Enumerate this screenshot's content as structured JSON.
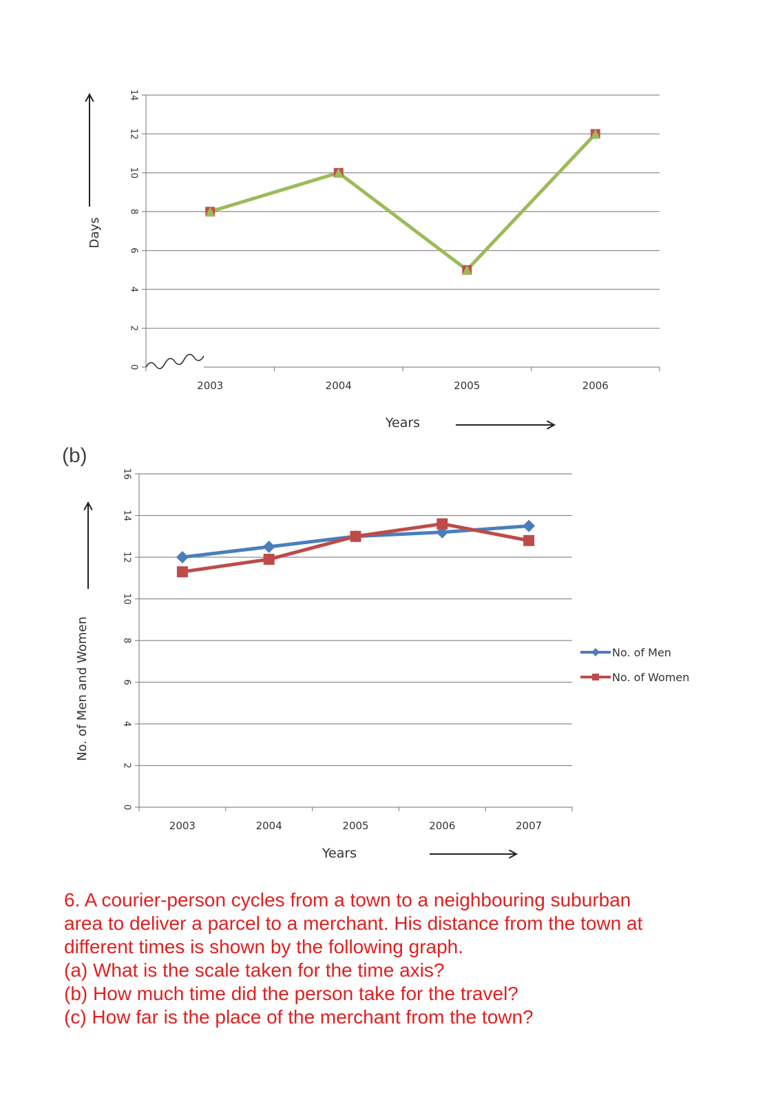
{
  "part_label": "(b)",
  "chart_data": [
    {
      "type": "line",
      "xlabel": "Years",
      "ylabel": "Days",
      "categories": [
        "2003",
        "2004",
        "2005",
        "2006"
      ],
      "yticks": [
        "0",
        "2",
        "4",
        "6",
        "8",
        "10",
        "12",
        "14"
      ],
      "ylim": [
        0,
        14
      ],
      "grid": true,
      "axis_break": true,
      "series": [
        {
          "values": [
            8,
            10,
            5,
            12
          ],
          "color": "#9bbb59",
          "marker_color": "#c0504d"
        }
      ]
    },
    {
      "type": "line",
      "xlabel": "Years",
      "ylabel": "No. of Men and Women",
      "categories": [
        "2003",
        "2004",
        "2005",
        "2006",
        "2007"
      ],
      "yticks": [
        "0",
        "2",
        "4",
        "6",
        "8",
        "10",
        "12",
        "14",
        "16"
      ],
      "ylim": [
        0,
        16
      ],
      "grid": true,
      "legend_position": "right",
      "series": [
        {
          "name": "No. of Men",
          "values": [
            12,
            12.5,
            13,
            13.2,
            13.5
          ],
          "color": "#4a7ebb",
          "marker": "diamond"
        },
        {
          "name": "No. of Women",
          "values": [
            11.3,
            11.9,
            13,
            13.6,
            12.8
          ],
          "color": "#be4b48",
          "marker": "square"
        }
      ]
    }
  ],
  "question": {
    "lines": [
      "6. A courier-person cycles from a town to a neighbouring suburban",
      "area to deliver a parcel to a merchant. His distance from the town at",
      "different times is shown by the following graph.",
      "(a) What is the scale taken for the time axis?",
      "(b) How much time did the person take for the travel?",
      "(c) How far is the place of the merchant from the town?"
    ]
  }
}
